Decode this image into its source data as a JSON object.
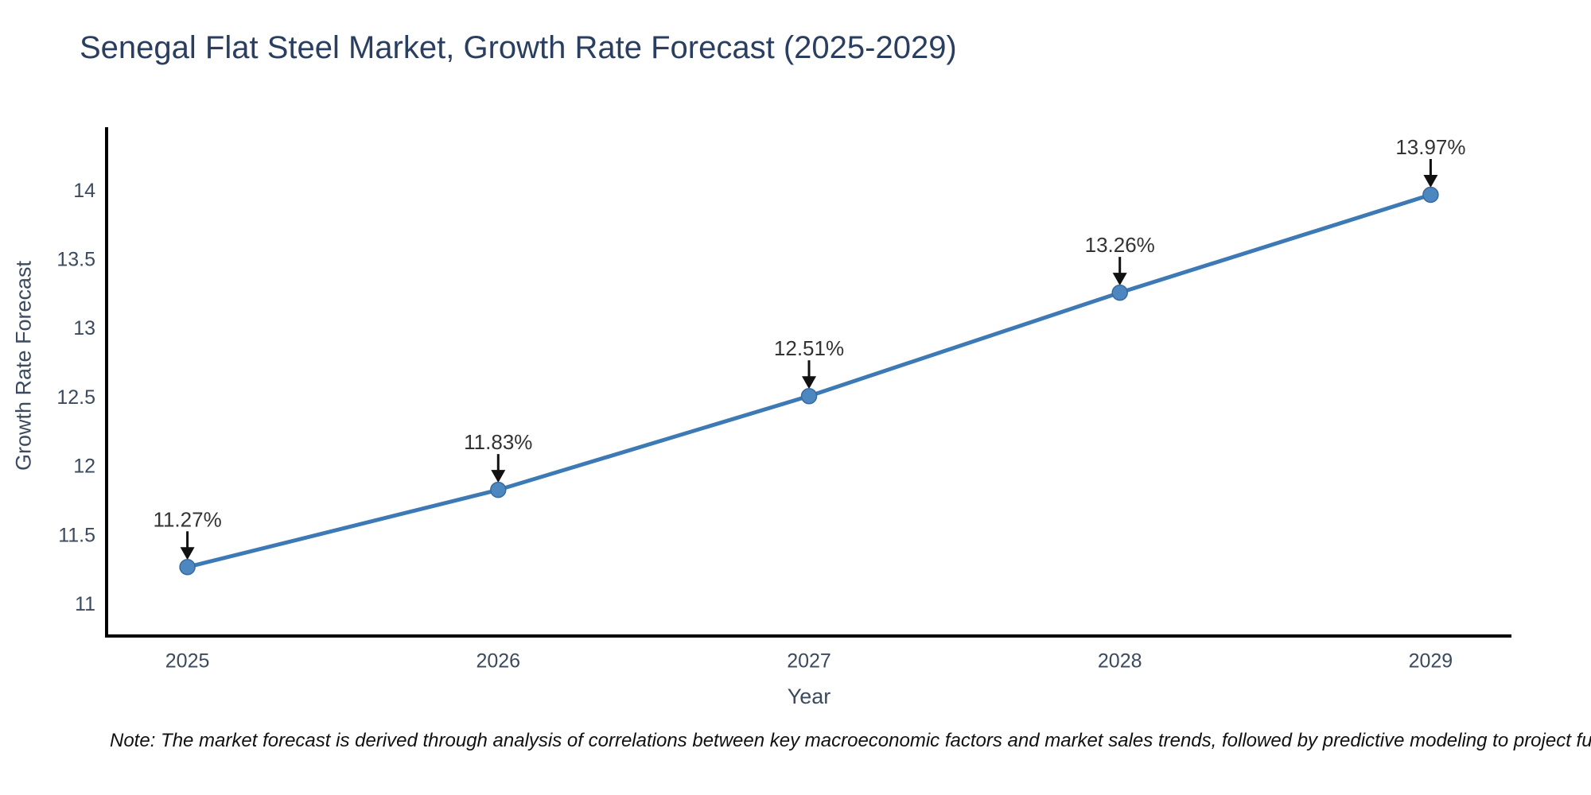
{
  "note": {
    "text": "Note: The market forecast is derived through analysis of correlations between key macroeconomic factors and market sales trends, followed by predictive modeling to project future sal"
  },
  "chart_data": {
    "type": "line",
    "title": "Senegal Flat Steel Market, Growth Rate Forecast (2025-2029)",
    "xlabel": "Year",
    "ylabel": "Growth Rate Forecast",
    "x": [
      2025,
      2026,
      2027,
      2028,
      2029
    ],
    "y": [
      11.27,
      11.83,
      12.51,
      13.26,
      13.97
    ],
    "point_labels": [
      "11.27%",
      "11.83%",
      "12.51%",
      "13.26%",
      "13.97%"
    ],
    "yticks": [
      11,
      11.5,
      12,
      12.5,
      13,
      13.5,
      14
    ],
    "xticks": [
      2025,
      2026,
      2027,
      2028,
      2029
    ],
    "xlim": [
      2024.74,
      2029.26
    ],
    "ylim": [
      10.77,
      14.46
    ],
    "grid": false,
    "legend": "none",
    "colors": {
      "line": "#3d7ab5",
      "marker_fill": "#4c88bf",
      "marker_edge": "#38699e",
      "axis_line": "#000000",
      "tick_text": "#3b4a5f",
      "annotation_text": "#333333",
      "arrow": "#111111",
      "title_text": "#2a3f5f",
      "axis_title_text": "#3b4a5f",
      "note_text": "#111111",
      "background": "#ffffff"
    }
  }
}
